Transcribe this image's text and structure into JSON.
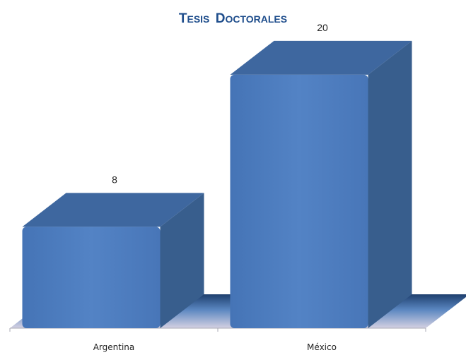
{
  "chart_data": {
    "type": "bar",
    "title": "Tesis Doctorales",
    "categories": [
      "Argentina",
      "México"
    ],
    "values": [
      8,
      20
    ],
    "xlabel": "",
    "ylabel": "",
    "ylim": [
      0,
      22
    ],
    "grid": false,
    "legend": "none",
    "style": "3d-column",
    "colors": {
      "bar_front": "#4f7fc2",
      "bar_side": "#385e8d",
      "bar_top": "#3e679f",
      "floor": "#c9c6d8",
      "title": "#1f4e8c"
    }
  }
}
